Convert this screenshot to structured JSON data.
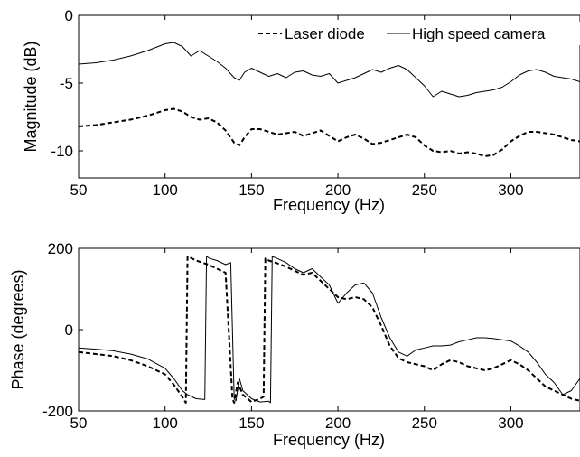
{
  "chart_data": [
    {
      "type": "line",
      "xlabel": "Frequency (Hz)",
      "ylabel": "Magnitude (dB)",
      "xlim": [
        50,
        340
      ],
      "ylim": [
        -12,
        0
      ],
      "xticks": [
        "50",
        "100",
        "150",
        "200",
        "250",
        "300"
      ],
      "yticks": [
        "0",
        "-5",
        "-10"
      ],
      "grid": false,
      "legend_position": "top-right",
      "series": [
        {
          "name": "Laser diode",
          "style": "dashed",
          "x": [
            50,
            60,
            70,
            80,
            90,
            100,
            105,
            110,
            115,
            120,
            125,
            130,
            135,
            140,
            143,
            146,
            150,
            155,
            160,
            165,
            170,
            175,
            180,
            185,
            190,
            195,
            200,
            205,
            210,
            215,
            220,
            225,
            230,
            235,
            240,
            245,
            250,
            255,
            260,
            265,
            270,
            275,
            280,
            285,
            290,
            295,
            300,
            305,
            310,
            315,
            320,
            325,
            330,
            335,
            340
          ],
          "y": [
            -8.2,
            -8.1,
            -7.9,
            -7.7,
            -7.4,
            -7.0,
            -6.9,
            -7.1,
            -7.5,
            -7.7,
            -7.6,
            -7.9,
            -8.5,
            -9.4,
            -9.6,
            -9.0,
            -8.4,
            -8.4,
            -8.6,
            -8.8,
            -8.7,
            -8.6,
            -8.9,
            -8.7,
            -8.5,
            -8.9,
            -9.3,
            -9.0,
            -8.8,
            -9.1,
            -9.5,
            -9.4,
            -9.2,
            -9.0,
            -8.8,
            -9.0,
            -9.6,
            -10.0,
            -10.1,
            -10.0,
            -10.2,
            -10.1,
            -10.2,
            -10.4,
            -10.3,
            -9.9,
            -9.3,
            -8.9,
            -8.6,
            -8.6,
            -8.7,
            -8.8,
            -9.0,
            -9.2,
            -9.3
          ]
        },
        {
          "name": "High speed camera",
          "style": "solid",
          "x": [
            50,
            60,
            70,
            80,
            90,
            100,
            105,
            110,
            115,
            120,
            125,
            130,
            135,
            140,
            143,
            146,
            150,
            155,
            160,
            165,
            170,
            175,
            180,
            185,
            190,
            195,
            200,
            205,
            210,
            215,
            220,
            225,
            230,
            235,
            240,
            245,
            250,
            255,
            260,
            265,
            270,
            275,
            280,
            285,
            290,
            295,
            300,
            305,
            310,
            315,
            320,
            325,
            330,
            335,
            340
          ],
          "y": [
            -3.6,
            -3.5,
            -3.3,
            -3.0,
            -2.6,
            -2.1,
            -2.0,
            -2.3,
            -3.0,
            -2.6,
            -3.0,
            -3.4,
            -3.9,
            -4.6,
            -4.8,
            -4.2,
            -3.9,
            -4.2,
            -4.5,
            -4.3,
            -4.6,
            -4.2,
            -4.1,
            -4.4,
            -4.5,
            -4.3,
            -5.0,
            -4.8,
            -4.6,
            -4.3,
            -4.0,
            -4.2,
            -3.9,
            -3.7,
            -4.0,
            -4.6,
            -5.2,
            -6.0,
            -5.6,
            -5.8,
            -6.0,
            -5.9,
            -5.7,
            -5.6,
            -5.5,
            -5.3,
            -4.9,
            -4.4,
            -4.1,
            -4.0,
            -4.2,
            -4.5,
            -4.6,
            -4.7,
            -4.9
          ]
        }
      ]
    },
    {
      "type": "line",
      "xlabel": "Frequency (Hz)",
      "ylabel": "Phase (degrees)",
      "xlim": [
        50,
        340
      ],
      "ylim": [
        -200,
        200
      ],
      "xticks": [
        "50",
        "100",
        "150",
        "200",
        "250",
        "300"
      ],
      "yticks": [
        "200",
        "0",
        "-200"
      ],
      "grid": false,
      "series": [
        {
          "name": "Laser diode",
          "style": "dashed",
          "x": [
            50,
            60,
            70,
            80,
            90,
            100,
            105,
            110,
            112,
            113,
            118,
            125,
            130,
            135,
            139,
            140,
            142,
            145,
            150,
            155,
            157,
            158,
            160,
            165,
            170,
            175,
            180,
            185,
            190,
            195,
            200,
            205,
            210,
            215,
            220,
            225,
            230,
            235,
            240,
            245,
            250,
            255,
            260,
            265,
            270,
            275,
            280,
            285,
            290,
            295,
            300,
            305,
            310,
            315,
            320,
            325,
            330,
            335,
            340
          ],
          "y": [
            -55,
            -60,
            -65,
            -75,
            -90,
            -110,
            -135,
            -165,
            -180,
            180,
            170,
            160,
            150,
            140,
            -170,
            -180,
            -130,
            -160,
            -178,
            -170,
            -165,
            175,
            170,
            163,
            155,
            145,
            135,
            140,
            120,
            100,
            80,
            75,
            80,
            75,
            55,
            10,
            -40,
            -70,
            -80,
            -85,
            -90,
            -100,
            -85,
            -75,
            -80,
            -90,
            -95,
            -100,
            -95,
            -85,
            -75,
            -85,
            -100,
            -120,
            -140,
            -150,
            -160,
            -170,
            -175
          ]
        },
        {
          "name": "High speed camera",
          "style": "solid",
          "x": [
            50,
            60,
            70,
            80,
            90,
            100,
            105,
            110,
            113,
            118,
            123,
            124,
            126,
            130,
            135,
            138,
            140,
            141,
            143,
            145,
            150,
            155,
            160,
            161,
            162,
            165,
            170,
            175,
            180,
            185,
            190,
            195,
            200,
            205,
            210,
            215,
            220,
            225,
            230,
            235,
            240,
            245,
            250,
            255,
            260,
            265,
            270,
            275,
            280,
            285,
            290,
            295,
            300,
            305,
            310,
            315,
            320,
            325,
            330,
            335,
            340
          ],
          "y": [
            -45,
            -48,
            -52,
            -60,
            -72,
            -95,
            -120,
            -150,
            -160,
            -170,
            -172,
            180,
            175,
            170,
            160,
            165,
            -170,
            -175,
            -120,
            -150,
            -170,
            -178,
            -176,
            -180,
            180,
            175,
            165,
            150,
            140,
            150,
            130,
            110,
            65,
            90,
            110,
            115,
            90,
            30,
            -20,
            -55,
            -65,
            -50,
            -45,
            -40,
            -40,
            -38,
            -30,
            -25,
            -20,
            -20,
            -22,
            -25,
            -28,
            -40,
            -55,
            -80,
            -110,
            -130,
            -160,
            -150,
            -120
          ]
        }
      ]
    }
  ]
}
